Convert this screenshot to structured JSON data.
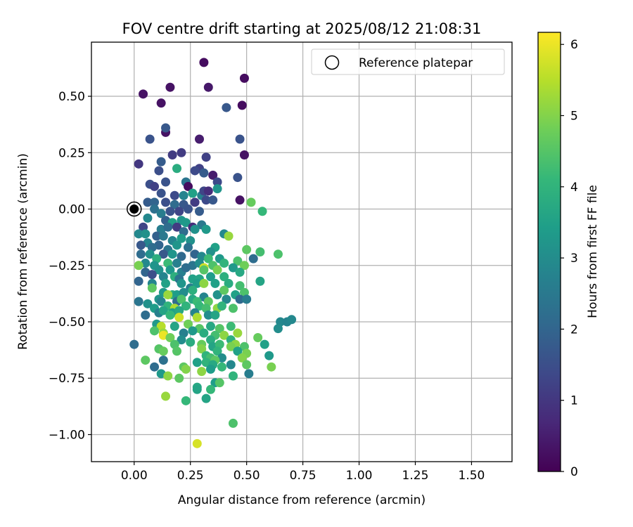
{
  "chart_data": {
    "type": "scatter",
    "title": "FOV centre drift starting at 2025/08/12 21:08:31",
    "xlabel": "Angular distance from reference (arcmin)",
    "ylabel": "Rotation from reference (arcmin)",
    "xlim": [
      -0.19,
      1.68
    ],
    "ylim": [
      -1.12,
      0.74
    ],
    "xticks": [
      0.0,
      0.25,
      0.5,
      0.75,
      1.0,
      1.25,
      1.5
    ],
    "xtick_labels": [
      "0.00",
      "0.25",
      "0.50",
      "0.75",
      "1.00",
      "1.25",
      "1.50"
    ],
    "yticks": [
      0.5,
      0.25,
      0.0,
      -0.25,
      -0.5,
      -0.75,
      -1.0
    ],
    "ytick_labels": [
      "0.50",
      "0.25",
      "0.00",
      "−0.25",
      "−0.50",
      "−0.75",
      "−1.00"
    ],
    "grid": true,
    "legend": {
      "position": "top-right",
      "entries": [
        "Reference platepar"
      ]
    },
    "reference_point": {
      "x": 0.0,
      "y": 0.0,
      "marker": "open-circle"
    },
    "colorbar": {
      "label": "Hours from first FF file",
      "range": [
        0,
        6.17
      ],
      "ticks": [
        0,
        1,
        2,
        3,
        4,
        5,
        6
      ],
      "tick_labels": [
        "0",
        "1",
        "2",
        "3",
        "4",
        "5",
        "6"
      ],
      "colormap": "viridis",
      "colormap_stops": [
        "#440154",
        "#482878",
        "#3e4989",
        "#31688e",
        "#26828e",
        "#1f9e89",
        "#35b779",
        "#6ece58",
        "#b5de2b",
        "#fde725"
      ]
    },
    "points": [
      [
        0.31,
        0.65,
        0.2
      ],
      [
        0.49,
        0.58,
        0.2
      ],
      [
        0.04,
        0.51,
        0.3
      ],
      [
        0.16,
        0.54,
        0.3
      ],
      [
        0.33,
        0.54,
        0.4
      ],
      [
        0.12,
        0.47,
        0.3
      ],
      [
        0.48,
        0.46,
        0.2
      ],
      [
        0.41,
        0.45,
        1.7
      ],
      [
        0.14,
        0.34,
        0.3
      ],
      [
        0.14,
        0.36,
        1.7
      ],
      [
        0.29,
        0.31,
        0.5
      ],
      [
        0.47,
        0.31,
        1.6
      ],
      [
        0.07,
        0.31,
        1.6
      ],
      [
        0.49,
        0.24,
        0.3
      ],
      [
        0.17,
        0.24,
        1.1
      ],
      [
        0.21,
        0.25,
        1.1
      ],
      [
        0.32,
        0.23,
        1.2
      ],
      [
        0.02,
        0.2,
        1.0
      ],
      [
        0.12,
        0.21,
        1.8
      ],
      [
        0.19,
        0.18,
        3.8
      ],
      [
        0.11,
        0.17,
        1.5
      ],
      [
        0.29,
        0.18,
        1.2
      ],
      [
        0.27,
        0.17,
        1.4
      ],
      [
        0.31,
        0.16,
        1.8
      ],
      [
        0.35,
        0.15,
        0.5
      ],
      [
        0.46,
        0.14,
        1.6
      ],
      [
        0.07,
        0.11,
        1.5
      ],
      [
        0.09,
        0.1,
        1.2
      ],
      [
        0.14,
        0.12,
        1.6
      ],
      [
        0.23,
        0.12,
        2.4
      ],
      [
        0.24,
        0.1,
        0.2
      ],
      [
        0.37,
        0.12,
        1.4
      ],
      [
        0.12,
        0.07,
        1.6
      ],
      [
        0.18,
        0.06,
        1.4
      ],
      [
        0.22,
        0.06,
        2.8
      ],
      [
        0.26,
        0.07,
        3.5
      ],
      [
        0.3,
        0.06,
        2.7
      ],
      [
        0.31,
        0.08,
        1.3
      ],
      [
        0.33,
        0.08,
        0.8
      ],
      [
        0.37,
        0.09,
        3.2
      ],
      [
        0.06,
        0.03,
        1.8
      ],
      [
        0.09,
        0.03,
        2.0
      ],
      [
        0.14,
        0.03,
        1.5
      ],
      [
        0.18,
        0.02,
        2.2
      ],
      [
        0.22,
        0.02,
        1.7
      ],
      [
        0.27,
        0.03,
        1.1
      ],
      [
        0.32,
        0.04,
        1.4
      ],
      [
        0.35,
        0.04,
        1.7
      ],
      [
        0.47,
        0.04,
        0.3
      ],
      [
        0.52,
        0.03,
        4.7
      ],
      [
        0.57,
        -0.01,
        4.1
      ],
      [
        0.09,
        0.0,
        2.3
      ],
      [
        0.12,
        -0.02,
        2.6
      ],
      [
        0.16,
        -0.01,
        1.6
      ],
      [
        0.2,
        -0.01,
        1.3
      ],
      [
        0.24,
        0.0,
        1.6
      ],
      [
        0.29,
        -0.01,
        1.8
      ],
      [
        0.06,
        -0.04,
        2.9
      ],
      [
        0.14,
        -0.05,
        1.9
      ],
      [
        0.17,
        -0.06,
        3.5
      ],
      [
        0.21,
        -0.05,
        3.2
      ],
      [
        0.23,
        -0.06,
        3.3
      ],
      [
        0.26,
        -0.08,
        0.8
      ],
      [
        0.3,
        -0.07,
        2.5
      ],
      [
        0.04,
        -0.08,
        1.3
      ],
      [
        0.12,
        -0.09,
        2.6
      ],
      [
        0.15,
        -0.08,
        2.2
      ],
      [
        0.19,
        -0.08,
        1.1
      ],
      [
        0.22,
        -0.1,
        2.2
      ],
      [
        0.27,
        -0.09,
        3.1
      ],
      [
        0.32,
        -0.09,
        3.3
      ],
      [
        0.02,
        -0.11,
        2.9
      ],
      [
        0.05,
        -0.11,
        3.1
      ],
      [
        0.1,
        -0.12,
        1.9
      ],
      [
        0.13,
        -0.12,
        2.5
      ],
      [
        0.17,
        -0.14,
        2.8
      ],
      [
        0.21,
        -0.13,
        3.4
      ],
      [
        0.25,
        -0.14,
        3.1
      ],
      [
        0.4,
        -0.11,
        2.9
      ],
      [
        0.42,
        -0.12,
        5.2
      ],
      [
        0.06,
        -0.15,
        2.8
      ],
      [
        0.11,
        -0.16,
        2.0
      ],
      [
        0.15,
        -0.18,
        2.4
      ],
      [
        0.19,
        -0.16,
        3.2
      ],
      [
        0.24,
        -0.17,
        2.3
      ],
      [
        0.03,
        -0.16,
        1.7
      ],
      [
        0.08,
        -0.17,
        2.2
      ],
      [
        0.13,
        -0.2,
        1.7
      ],
      [
        0.36,
        -0.17,
        3.5
      ],
      [
        0.34,
        -0.19,
        3.1
      ],
      [
        0.5,
        -0.18,
        4.6
      ],
      [
        0.56,
        -0.19,
        4.3
      ],
      [
        0.64,
        -0.2,
        4.4
      ],
      [
        0.03,
        -0.2,
        2.2
      ],
      [
        0.07,
        -0.2,
        3.1
      ],
      [
        0.1,
        -0.22,
        3.9
      ],
      [
        0.17,
        -0.2,
        3.2
      ],
      [
        0.21,
        -0.21,
        2.1
      ],
      [
        0.27,
        -0.2,
        2.0
      ],
      [
        0.3,
        -0.21,
        2.9
      ],
      [
        0.33,
        -0.22,
        4.2
      ],
      [
        0.38,
        -0.22,
        3.3
      ],
      [
        0.05,
        -0.24,
        2.9
      ],
      [
        0.09,
        -0.25,
        3.2
      ],
      [
        0.15,
        -0.24,
        4.2
      ],
      [
        0.19,
        -0.24,
        2.7
      ],
      [
        0.26,
        -0.25,
        2.4
      ],
      [
        0.29,
        -0.24,
        3.0
      ],
      [
        0.35,
        -0.25,
        4.4
      ],
      [
        0.4,
        -0.24,
        4.0
      ],
      [
        0.46,
        -0.23,
        4.4
      ],
      [
        0.49,
        -0.25,
        4.8
      ],
      [
        0.53,
        -0.22,
        2.2
      ],
      [
        0.02,
        -0.25,
        4.9
      ],
      [
        0.11,
        -0.27,
        3.1
      ],
      [
        0.16,
        -0.27,
        3.3
      ],
      [
        0.21,
        -0.28,
        2.7
      ],
      [
        0.23,
        -0.26,
        2.2
      ],
      [
        0.31,
        -0.26,
        5.7
      ],
      [
        0.31,
        -0.27,
        4.5
      ],
      [
        0.37,
        -0.27,
        4.9
      ],
      [
        0.44,
        -0.26,
        3.3
      ],
      [
        0.05,
        -0.28,
        2.0
      ],
      [
        0.08,
        -0.29,
        1.5
      ],
      [
        0.13,
        -0.3,
        2.8
      ],
      [
        0.18,
        -0.3,
        3.9
      ],
      [
        0.2,
        -0.31,
        2.4
      ],
      [
        0.26,
        -0.31,
        3.5
      ],
      [
        0.29,
        -0.31,
        3.6
      ],
      [
        0.34,
        -0.3,
        3.4
      ],
      [
        0.4,
        -0.3,
        3.9
      ],
      [
        0.47,
        -0.28,
        3.7
      ],
      [
        0.02,
        -0.32,
        2.0
      ],
      [
        0.08,
        -0.33,
        2.8
      ],
      [
        0.14,
        -0.33,
        3.5
      ],
      [
        0.21,
        -0.33,
        3.2
      ],
      [
        0.25,
        -0.35,
        2.7
      ],
      [
        0.28,
        -0.33,
        3.4
      ],
      [
        0.31,
        -0.33,
        5.1
      ],
      [
        0.36,
        -0.33,
        3.5
      ],
      [
        0.42,
        -0.33,
        3.8
      ],
      [
        0.47,
        -0.34,
        4.3
      ],
      [
        0.56,
        -0.32,
        3.6
      ],
      [
        0.08,
        -0.35,
        4.6
      ],
      [
        0.13,
        -0.37,
        3.3
      ],
      [
        0.17,
        -0.38,
        3.8
      ],
      [
        0.19,
        -0.38,
        3.4
      ],
      [
        0.22,
        -0.37,
        3.0
      ],
      [
        0.26,
        -0.36,
        3.9
      ],
      [
        0.31,
        -0.39,
        2.8
      ],
      [
        0.37,
        -0.38,
        3.1
      ],
      [
        0.4,
        -0.36,
        4.6
      ],
      [
        0.45,
        -0.38,
        3.5
      ],
      [
        0.49,
        -0.37,
        4.4
      ],
      [
        0.15,
        -0.38,
        5.2
      ],
      [
        0.11,
        -0.4,
        3.2
      ],
      [
        0.12,
        -0.41,
        2.8
      ],
      [
        0.19,
        -0.41,
        2.2
      ],
      [
        0.21,
        -0.4,
        4.4
      ],
      [
        0.26,
        -0.4,
        3.7
      ],
      [
        0.28,
        -0.41,
        4.2
      ],
      [
        0.33,
        -0.41,
        4.6
      ],
      [
        0.41,
        -0.4,
        2.9
      ],
      [
        0.47,
        -0.4,
        2.1
      ],
      [
        0.5,
        -0.4,
        2.6
      ],
      [
        0.02,
        -0.41,
        2.4
      ],
      [
        0.06,
        -0.42,
        3.1
      ],
      [
        0.15,
        -0.43,
        4.0
      ],
      [
        0.18,
        -0.44,
        5.4
      ],
      [
        0.23,
        -0.43,
        4.0
      ],
      [
        0.29,
        -0.43,
        4.1
      ],
      [
        0.32,
        -0.44,
        4.3
      ],
      [
        0.37,
        -0.44,
        5.1
      ],
      [
        0.39,
        -0.43,
        4.0
      ],
      [
        0.44,
        -0.44,
        4.4
      ],
      [
        0.09,
        -0.44,
        3.4
      ],
      [
        0.11,
        -0.46,
        2.7
      ],
      [
        0.13,
        -0.45,
        3.6
      ],
      [
        0.17,
        -0.46,
        3.5
      ],
      [
        0.2,
        -0.45,
        3.7
      ],
      [
        0.27,
        -0.46,
        2.8
      ],
      [
        0.33,
        -0.47,
        3.0
      ],
      [
        0.36,
        -0.47,
        3.6
      ],
      [
        0.05,
        -0.47,
        2.2
      ],
      [
        0.16,
        -0.47,
        4.1
      ],
      [
        0.2,
        -0.48,
        5.7
      ],
      [
        0.28,
        -0.48,
        5.4
      ],
      [
        0.65,
        -0.5,
        2.9
      ],
      [
        0.68,
        -0.5,
        2.8
      ],
      [
        0.7,
        -0.49,
        2.9
      ],
      [
        0.1,
        -0.51,
        3.3
      ],
      [
        0.12,
        -0.52,
        5.5
      ],
      [
        0.18,
        -0.52,
        3.6
      ],
      [
        0.24,
        -0.51,
        4.8
      ],
      [
        0.29,
        -0.53,
        4.5
      ],
      [
        0.34,
        -0.52,
        3.7
      ],
      [
        0.38,
        -0.53,
        4.5
      ],
      [
        0.43,
        -0.52,
        4.2
      ],
      [
        0.09,
        -0.54,
        4.4
      ],
      [
        0.13,
        -0.55,
        5.2
      ],
      [
        0.13,
        -0.56,
        6.0
      ],
      [
        0.22,
        -0.55,
        2.7
      ],
      [
        0.26,
        -0.54,
        3.3
      ],
      [
        0.31,
        -0.55,
        3.8
      ],
      [
        0.36,
        -0.56,
        4.3
      ],
      [
        0.4,
        -0.56,
        5.1
      ],
      [
        0.46,
        -0.55,
        5.2
      ],
      [
        0.64,
        -0.53,
        3.0
      ],
      [
        0.16,
        -0.57,
        4.8
      ],
      [
        0.21,
        -0.58,
        3.0
      ],
      [
        0.34,
        -0.58,
        3.8
      ],
      [
        0.43,
        -0.58,
        3.9
      ],
      [
        0.45,
        -0.6,
        5.1
      ],
      [
        0.55,
        -0.57,
        4.7
      ],
      [
        0.0,
        -0.6,
        2.2
      ],
      [
        0.18,
        -0.6,
        4.4
      ],
      [
        0.25,
        -0.59,
        3.8
      ],
      [
        0.3,
        -0.6,
        4.7
      ],
      [
        0.35,
        -0.61,
        3.6
      ],
      [
        0.38,
        -0.6,
        4.2
      ],
      [
        0.43,
        -0.61,
        4.9
      ],
      [
        0.49,
        -0.61,
        4.4
      ],
      [
        0.58,
        -0.6,
        3.5
      ],
      [
        0.11,
        -0.62,
        4.5
      ],
      [
        0.13,
        -0.63,
        4.7
      ],
      [
        0.19,
        -0.63,
        4.5
      ],
      [
        0.3,
        -0.62,
        5.0
      ],
      [
        0.37,
        -0.63,
        4.0
      ],
      [
        0.46,
        -0.63,
        3.5
      ],
      [
        0.32,
        -0.65,
        4.0
      ],
      [
        0.34,
        -0.66,
        4.3
      ],
      [
        0.39,
        -0.66,
        3.0
      ],
      [
        0.5,
        -0.64,
        4.9
      ],
      [
        0.6,
        -0.65,
        3.3
      ],
      [
        0.05,
        -0.67,
        4.6
      ],
      [
        0.13,
        -0.67,
        2.3
      ],
      [
        0.28,
        -0.68,
        3.5
      ],
      [
        0.32,
        -0.68,
        4.0
      ],
      [
        0.36,
        -0.67,
        4.6
      ],
      [
        0.48,
        -0.66,
        5.0
      ],
      [
        0.09,
        -0.7,
        2.2
      ],
      [
        0.22,
        -0.7,
        4.6
      ],
      [
        0.35,
        -0.69,
        3.7
      ],
      [
        0.43,
        -0.69,
        2.9
      ],
      [
        0.5,
        -0.69,
        4.6
      ],
      [
        0.61,
        -0.7,
        4.9
      ],
      [
        0.12,
        -0.73,
        3.3
      ],
      [
        0.15,
        -0.74,
        5.1
      ],
      [
        0.2,
        -0.75,
        4.6
      ],
      [
        0.23,
        -0.71,
        5.0
      ],
      [
        0.3,
        -0.72,
        5.1
      ],
      [
        0.34,
        -0.71,
        3.4
      ],
      [
        0.39,
        -0.7,
        4.1
      ],
      [
        0.44,
        -0.74,
        4.0
      ],
      [
        0.51,
        -0.73,
        2.6
      ],
      [
        0.36,
        -0.77,
        3.4
      ],
      [
        0.38,
        -0.77,
        4.5
      ],
      [
        0.28,
        -0.79,
        3.7
      ],
      [
        0.28,
        -0.8,
        3.6
      ],
      [
        0.34,
        -0.8,
        4.1
      ],
      [
        0.32,
        -0.84,
        3.6
      ],
      [
        0.14,
        -0.83,
        5.2
      ],
      [
        0.23,
        -0.85,
        4.1
      ],
      [
        0.44,
        -0.95,
        4.4
      ],
      [
        0.28,
        -1.04,
        5.8
      ]
    ]
  }
}
